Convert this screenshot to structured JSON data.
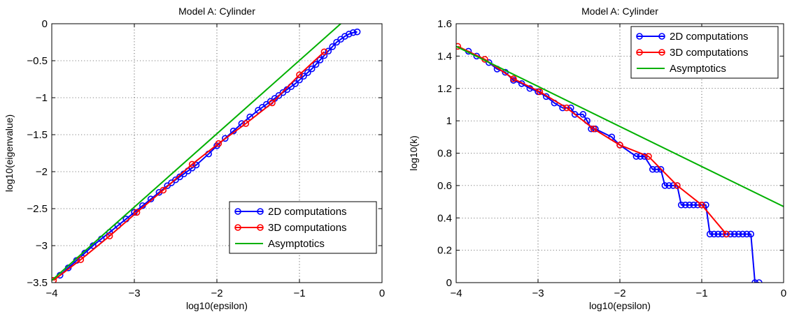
{
  "chart_data": [
    {
      "type": "line",
      "title": "Model A: Cylinder",
      "xlabel": "log10(epsilon)",
      "ylabel": "log10(eigenvalue)",
      "xlim": [
        -4,
        0
      ],
      "ylim": [
        -3.5,
        0
      ],
      "xticks": [
        -4,
        -3,
        -2,
        -1,
        0
      ],
      "xtick_labels": [
        "−4",
        "−3",
        "−2",
        "−1",
        "0"
      ],
      "yticks": [
        -3.5,
        -3,
        -2.5,
        -2,
        -1.5,
        -1,
        -0.5,
        0
      ],
      "ytick_labels": [
        "−3.5",
        "−3",
        "−2.5",
        "−2",
        "−1.5",
        "−1",
        "−0.5",
        "0"
      ],
      "grid": true,
      "legend_position": "bottom-right",
      "series": [
        {
          "name": "2D computations",
          "color": "#0000ff",
          "marker": "circle",
          "x": [
            -3.9,
            -3.8,
            -3.7,
            -3.6,
            -3.5,
            -3.4,
            -3.3,
            -3.2,
            -3.1,
            -3.0,
            -2.9,
            -2.8,
            -2.7,
            -2.6,
            -2.55,
            -2.5,
            -2.45,
            -2.4,
            -2.35,
            -2.3,
            -2.25,
            -2.1,
            -2.0,
            -1.9,
            -1.8,
            -1.7,
            -1.6,
            -1.5,
            -1.45,
            -1.4,
            -1.35,
            -1.3,
            -1.25,
            -1.2,
            -1.15,
            -1.1,
            -1.05,
            -1.0,
            -0.95,
            -0.9,
            -0.85,
            -0.8,
            -0.75,
            -0.7,
            -0.65,
            -0.6,
            -0.55,
            -0.5,
            -0.45,
            -0.4,
            -0.35,
            -0.3
          ],
          "y": [
            -3.4,
            -3.3,
            -3.2,
            -3.1,
            -3.0,
            -2.91,
            -2.82,
            -2.73,
            -2.64,
            -2.55,
            -2.46,
            -2.37,
            -2.28,
            -2.19,
            -2.15,
            -2.11,
            -2.07,
            -2.03,
            -1.99,
            -1.95,
            -1.91,
            -1.76,
            -1.65,
            -1.55,
            -1.45,
            -1.35,
            -1.26,
            -1.17,
            -1.13,
            -1.09,
            -1.05,
            -1.01,
            -0.97,
            -0.93,
            -0.89,
            -0.85,
            -0.81,
            -0.76,
            -0.71,
            -0.66,
            -0.61,
            -0.55,
            -0.49,
            -0.43,
            -0.37,
            -0.31,
            -0.25,
            -0.21,
            -0.17,
            -0.14,
            -0.12,
            -0.11
          ]
        },
        {
          "name": "3D computations",
          "color": "#ff0000",
          "marker": "circle",
          "x": [
            -3.98,
            -3.65,
            -3.3,
            -2.97,
            -2.65,
            -2.3,
            -1.98,
            -1.65,
            -1.33,
            -1.0,
            -0.7
          ],
          "y": [
            -3.47,
            -3.19,
            -2.87,
            -2.55,
            -2.25,
            -1.9,
            -1.62,
            -1.35,
            -1.07,
            -0.69,
            -0.38
          ]
        },
        {
          "name": "Asymptotics",
          "color": "#00b000",
          "marker": "none",
          "x": [
            -4.0,
            -0.5
          ],
          "y": [
            -3.47,
            0.0
          ]
        }
      ]
    },
    {
      "type": "line",
      "title": "Model A: Cylinder",
      "xlabel": "log10(epsilon)",
      "ylabel": "log10(k)",
      "xlim": [
        -4,
        0
      ],
      "ylim": [
        0,
        1.6
      ],
      "xticks": [
        -4,
        -3,
        -2,
        -1,
        0
      ],
      "xtick_labels": [
        "−4",
        "−3",
        "−2",
        "−1",
        "0"
      ],
      "yticks": [
        0,
        0.2,
        0.4,
        0.6,
        0.8,
        1,
        1.2,
        1.4,
        1.6
      ],
      "ytick_labels": [
        "0",
        "0.2",
        "0.4",
        "0.6",
        "0.8",
        "1",
        "1.2",
        "1.4",
        "1.6"
      ],
      "grid": true,
      "legend_position": "top-right",
      "series": [
        {
          "name": "2D computations",
          "color": "#0000ff",
          "marker": "circle",
          "x": [
            -3.85,
            -3.75,
            -3.6,
            -3.5,
            -3.4,
            -3.3,
            -3.2,
            -3.1,
            -3.0,
            -2.9,
            -2.8,
            -2.7,
            -2.6,
            -2.55,
            -2.45,
            -2.4,
            -2.35,
            -2.3,
            -2.1,
            -2.0,
            -1.8,
            -1.75,
            -1.7,
            -1.6,
            -1.55,
            -1.5,
            -1.45,
            -1.4,
            -1.35,
            -1.3,
            -1.25,
            -1.2,
            -1.15,
            -1.1,
            -1.05,
            -1.0,
            -0.95,
            -0.9,
            -0.85,
            -0.8,
            -0.75,
            -0.7,
            -0.65,
            -0.6,
            -0.55,
            -0.5,
            -0.45,
            -0.4,
            -0.35,
            -0.3
          ],
          "y": [
            1.43,
            1.4,
            1.36,
            1.32,
            1.3,
            1.25,
            1.23,
            1.2,
            1.18,
            1.15,
            1.11,
            1.08,
            1.08,
            1.04,
            1.04,
            1.0,
            0.95,
            0.95,
            0.9,
            0.85,
            0.78,
            0.78,
            0.78,
            0.7,
            0.7,
            0.7,
            0.6,
            0.6,
            0.6,
            0.6,
            0.48,
            0.48,
            0.48,
            0.48,
            0.48,
            0.48,
            0.48,
            0.3,
            0.3,
            0.3,
            0.3,
            0.3,
            0.3,
            0.3,
            0.3,
            0.3,
            0.3,
            0.3,
            0.0,
            0.0
          ]
        },
        {
          "name": "3D computations",
          "color": "#ff0000",
          "marker": "circle",
          "x": [
            -3.98,
            -3.65,
            -3.3,
            -2.98,
            -2.65,
            -2.32,
            -2.0,
            -1.65,
            -1.3,
            -1.0,
            -0.7
          ],
          "y": [
            1.46,
            1.38,
            1.26,
            1.18,
            1.08,
            0.95,
            0.85,
            0.78,
            0.6,
            0.48,
            0.3
          ]
        },
        {
          "name": "Asymptotics",
          "color": "#00b000",
          "marker": "none",
          "x": [
            -4.0,
            0.0
          ],
          "y": [
            1.46,
            0.47
          ]
        }
      ]
    }
  ]
}
